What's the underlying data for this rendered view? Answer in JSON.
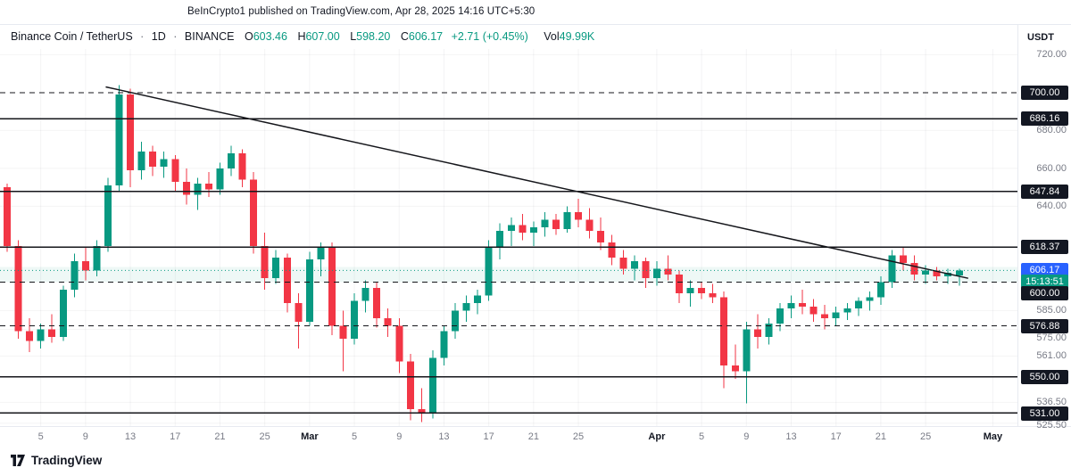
{
  "attribution": "BeInCrypto1 published on TradingView.com, Apr 28, 2025 14:16 UTC+5:30",
  "legend": {
    "symbol": "Binance Coin / TetherUS",
    "separator": "·",
    "interval": "1D",
    "exchange": "BINANCE",
    "ohlc": [
      {
        "label": "O",
        "value": "603.46"
      },
      {
        "label": "H",
        "value": "607.00"
      },
      {
        "label": "L",
        "value": "598.20"
      },
      {
        "label": "C",
        "value": "606.17"
      }
    ],
    "change": "+2.71 (+0.45%)",
    "volume_label": "Vol",
    "volume_value": "49.99K"
  },
  "axis": {
    "currency": "USDT",
    "price_ticks": [
      720,
      680,
      660,
      640,
      585,
      575,
      561,
      536.5,
      525.5
    ],
    "time_ticks": [
      {
        "label": "5",
        "idx": 3
      },
      {
        "label": "9",
        "idx": 7
      },
      {
        "label": "13",
        "idx": 11
      },
      {
        "label": "17",
        "idx": 15
      },
      {
        "label": "21",
        "idx": 19
      },
      {
        "label": "25",
        "idx": 23
      },
      {
        "label": "Mar",
        "idx": 27,
        "major": true
      },
      {
        "label": "5",
        "idx": 31
      },
      {
        "label": "9",
        "idx": 35
      },
      {
        "label": "13",
        "idx": 39
      },
      {
        "label": "17",
        "idx": 43
      },
      {
        "label": "21",
        "idx": 47
      },
      {
        "label": "25",
        "idx": 51
      },
      {
        "label": "Apr",
        "idx": 58,
        "major": true
      },
      {
        "label": "5",
        "idx": 62
      },
      {
        "label": "9",
        "idx": 66
      },
      {
        "label": "13",
        "idx": 70
      },
      {
        "label": "17",
        "idx": 74
      },
      {
        "label": "21",
        "idx": 78
      },
      {
        "label": "25",
        "idx": 82
      },
      {
        "label": "May",
        "idx": 88,
        "major": true
      }
    ]
  },
  "price_line": {
    "price": 606.17,
    "label": "606.17",
    "countdown": "15:13:51"
  },
  "colors": {
    "up": "#089981",
    "down": "#f23645",
    "last_price_badge": "#2962ff",
    "countdown_badge": "#089981",
    "level_badge": "#131722",
    "level_line": "#15161b",
    "text": "#131722",
    "muted": "#787b86",
    "band": "rgba(8,153,129,0.07)"
  },
  "logo_text": "TradingView",
  "chart_data": {
    "type": "candlestick",
    "title": "Binance Coin / TetherUS · 1D · BINANCE",
    "ylabel": "Price (USDT)",
    "ylim": [
      524,
      723
    ],
    "band": {
      "top": 608,
      "bottom": 600
    },
    "trendline": {
      "from_idx": 8.8,
      "from_price": 703,
      "to_idx": 85.8,
      "to_price": 602
    },
    "levels": [
      {
        "price": 700,
        "label": "700.00",
        "style": "dashed"
      },
      {
        "price": 686.16,
        "label": "686.16",
        "style": "solid"
      },
      {
        "price": 647.84,
        "label": "647.84",
        "style": "solid"
      },
      {
        "price": 618.37,
        "label": "618.37",
        "style": "solid"
      },
      {
        "price": 600,
        "label": "600.00",
        "style": "dashed"
      },
      {
        "price": 576.88,
        "label": "576.88",
        "style": "dashed"
      },
      {
        "price": 550,
        "label": "550.00",
        "style": "solid"
      },
      {
        "price": 531,
        "label": "531.00",
        "style": "solid"
      }
    ],
    "candles": [
      [
        "Feb 2",
        650,
        652,
        616,
        619
      ],
      [
        "Feb 3",
        619,
        622,
        570,
        574
      ],
      [
        "Feb 4",
        574,
        581,
        563,
        569
      ],
      [
        "Feb 5",
        569,
        578,
        565,
        575
      ],
      [
        "Feb 6",
        575,
        583,
        568,
        571
      ],
      [
        "Feb 7",
        571,
        598,
        569,
        596
      ],
      [
        "Feb 8",
        596,
        615,
        592,
        611
      ],
      [
        "Feb 9",
        611,
        618,
        601,
        606
      ],
      [
        "Feb 10",
        606,
        622,
        603,
        619
      ],
      [
        "Feb 11",
        619,
        655,
        616,
        651
      ],
      [
        "Feb 12",
        651,
        704,
        648,
        699
      ],
      [
        "Feb 13",
        699,
        702,
        650,
        659
      ],
      [
        "Feb 14",
        659,
        674,
        654,
        669
      ],
      [
        "Feb 15",
        669,
        672,
        656,
        661
      ],
      [
        "Feb 16",
        661,
        669,
        655,
        665
      ],
      [
        "Feb 17",
        665,
        667,
        648,
        653
      ],
      [
        "Feb 18",
        653,
        660,
        641,
        646
      ],
      [
        "Feb 19",
        646,
        655,
        638,
        652
      ],
      [
        "Feb 20",
        652,
        658,
        645,
        649
      ],
      [
        "Feb 21",
        649,
        663,
        646,
        660
      ],
      [
        "Feb 22",
        660,
        672,
        656,
        668
      ],
      [
        "Feb 23",
        668,
        670,
        650,
        654
      ],
      [
        "Feb 24",
        654,
        658,
        615,
        619
      ],
      [
        "Feb 25",
        619,
        626,
        596,
        602
      ],
      [
        "Feb 26",
        602,
        617,
        599,
        613
      ],
      [
        "Feb 27",
        613,
        615,
        584,
        589
      ],
      [
        "Feb 28",
        589,
        594,
        565,
        579
      ],
      [
        "Mar 1",
        579,
        616,
        577,
        612
      ],
      [
        "Mar 2",
        612,
        621,
        603,
        618
      ],
      [
        "Mar 3",
        618,
        621,
        572,
        577
      ],
      [
        "Mar 4",
        577,
        585,
        553,
        570
      ],
      [
        "Mar 5",
        570,
        594,
        567,
        590
      ],
      [
        "Mar 6",
        590,
        601,
        584,
        597
      ],
      [
        "Mar 7",
        597,
        600,
        576,
        581
      ],
      [
        "Mar 8",
        581,
        586,
        571,
        577
      ],
      [
        "Mar 9",
        577,
        581,
        552,
        558
      ],
      [
        "Mar 10",
        558,
        562,
        527,
        533
      ],
      [
        "Mar 11",
        533,
        544,
        526,
        531
      ],
      [
        "Mar 12",
        531,
        564,
        528,
        560
      ],
      [
        "Mar 13",
        560,
        577,
        556,
        574
      ],
      [
        "Mar 14",
        574,
        589,
        570,
        585
      ],
      [
        "Mar 15",
        585,
        593,
        579,
        589
      ],
      [
        "Mar 16",
        589,
        596,
        583,
        593
      ],
      [
        "Mar 17",
        593,
        622,
        590,
        618
      ],
      [
        "Mar 18",
        618,
        631,
        612,
        627
      ],
      [
        "Mar 19",
        627,
        634,
        619,
        630
      ],
      [
        "Mar 20",
        630,
        636,
        622,
        626
      ],
      [
        "Mar 21",
        626,
        632,
        619,
        629
      ],
      [
        "Mar 22",
        629,
        637,
        624,
        633
      ],
      [
        "Mar 23",
        633,
        636,
        625,
        628
      ],
      [
        "Mar 24",
        628,
        640,
        626,
        637
      ],
      [
        "Mar 25",
        637,
        644,
        629,
        633
      ],
      [
        "Mar 26",
        633,
        639,
        623,
        627
      ],
      [
        "Mar 27",
        627,
        634,
        617,
        621
      ],
      [
        "Mar 28",
        621,
        625,
        609,
        613
      ],
      [
        "Mar 29",
        613,
        617,
        604,
        607
      ],
      [
        "Mar 30",
        607,
        614,
        601,
        611
      ],
      [
        "Mar 31",
        611,
        613,
        597,
        602
      ],
      [
        "Apr 1",
        602,
        611,
        598,
        607
      ],
      [
        "Apr 2",
        607,
        614,
        601,
        604
      ],
      [
        "Apr 3",
        604,
        606,
        589,
        594
      ],
      [
        "Apr 4",
        594,
        601,
        587,
        597
      ],
      [
        "Apr 5",
        597,
        600,
        591,
        594
      ],
      [
        "Apr 6",
        594,
        599,
        589,
        592
      ],
      [
        "Apr 7",
        592,
        595,
        544,
        556
      ],
      [
        "Apr 8",
        556,
        567,
        549,
        553
      ],
      [
        "Apr 9",
        553,
        579,
        536,
        575
      ],
      [
        "Apr 10",
        575,
        583,
        565,
        571
      ],
      [
        "Apr 11",
        571,
        581,
        567,
        578
      ],
      [
        "Apr 12",
        578,
        589,
        574,
        586
      ],
      [
        "Apr 13",
        586,
        593,
        581,
        589
      ],
      [
        "Apr 14",
        589,
        596,
        583,
        587
      ],
      [
        "Apr 15",
        587,
        591,
        579,
        583
      ],
      [
        "Apr 16",
        583,
        588,
        575,
        581
      ],
      [
        "Apr 17",
        581,
        587,
        577,
        584
      ],
      [
        "Apr 18",
        584,
        589,
        580,
        586
      ],
      [
        "Apr 19",
        586,
        592,
        582,
        590
      ],
      [
        "Apr 20",
        590,
        595,
        585,
        592
      ],
      [
        "Apr 21",
        592,
        603,
        588,
        600
      ],
      [
        "Apr 22",
        600,
        617,
        597,
        614
      ],
      [
        "Apr 23",
        614,
        618,
        606,
        610
      ],
      [
        "Apr 24",
        610,
        614,
        601,
        604
      ],
      [
        "Apr 25",
        604,
        609,
        599,
        606
      ],
      [
        "Apr 26",
        606,
        608,
        601,
        603
      ],
      [
        "Apr 27",
        603,
        607,
        599,
        605
      ],
      [
        "Apr 28",
        603.46,
        607,
        598.2,
        606.17
      ]
    ]
  }
}
